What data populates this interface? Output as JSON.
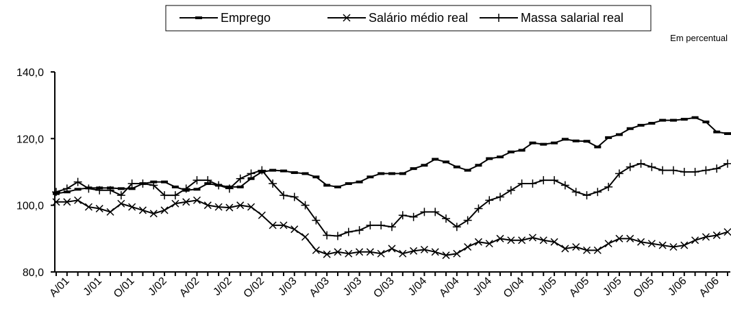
{
  "chart_data": {
    "type": "line",
    "annotation": "Em   percentual",
    "categories": [
      null,
      "A/01",
      null,
      null,
      "J/01",
      null,
      null,
      "O/01",
      null,
      null,
      "J/02",
      null,
      null,
      "A/02",
      null,
      null,
      "J/02",
      null,
      null,
      "O/02",
      null,
      null,
      "J/03",
      null,
      null,
      "A/03",
      null,
      null,
      "J/03",
      null,
      null,
      "O/03",
      null,
      null,
      "J/04",
      null,
      null,
      "A/04",
      null,
      null,
      "J/04",
      null,
      null,
      "O/04",
      null,
      null,
      "J/05",
      null,
      null,
      "A/05",
      null,
      null,
      "J/05",
      null,
      null,
      "O/05",
      null,
      null,
      "J/06",
      null,
      null,
      "A/06",
      null
    ],
    "series": [
      {
        "name": "Emprego",
        "color": "#000000",
        "marker": "dash",
        "values": [
          103.5,
          104,
          104.8,
          105.2,
          105.2,
          105.2,
          105,
          105,
          106.5,
          107,
          107,
          105.5,
          104.5,
          104.8,
          106.5,
          106,
          105.5,
          105.5,
          108,
          110,
          110.5,
          110.3,
          109.8,
          109.5,
          108.5,
          106,
          105.5,
          106.5,
          107,
          108.5,
          109.5,
          109.5,
          109.5,
          111,
          112,
          113.8,
          113,
          111.5,
          110.5,
          112,
          114,
          114.5,
          116,
          116.5,
          118.7,
          118.3,
          118.7,
          119.8,
          119.3,
          119.2,
          117.5,
          120.3,
          121.2,
          123,
          124,
          124.6,
          125.5,
          125.5,
          125.8,
          126.3,
          125,
          122,
          121.5
        ]
      },
      {
        "name": "Salário médio real",
        "color": "#000000",
        "marker": "x",
        "values": [
          101,
          101,
          101.5,
          99.5,
          99,
          98,
          100.5,
          99.5,
          98.5,
          97.5,
          98.5,
          100.5,
          101,
          101.5,
          100,
          99.5,
          99.3,
          100,
          99.5,
          97,
          94,
          94,
          92.8,
          90.5,
          86.5,
          85.3,
          86,
          85.5,
          86,
          86,
          85.5,
          87,
          85.5,
          86.3,
          86.7,
          86,
          85,
          85.5,
          87.5,
          89,
          88.5,
          90,
          89.5,
          89.5,
          90.3,
          89.5,
          89,
          87,
          87.5,
          86.5,
          86.5,
          88.5,
          90,
          90,
          89,
          88.5,
          88,
          87.5,
          88,
          89.5,
          90.5,
          91,
          92
        ]
      },
      {
        "name": "Massa salarial real",
        "color": "#000000",
        "marker": "plus",
        "values": [
          104,
          105,
          107,
          105,
          104.5,
          104.5,
          103,
          106.5,
          106.5,
          106,
          103,
          103,
          105,
          107.5,
          107.5,
          106,
          105,
          108,
          109.5,
          110.5,
          106.5,
          103,
          102.5,
          100,
          95.5,
          91,
          90.8,
          92,
          92.5,
          94,
          94,
          93.5,
          97,
          96.5,
          98,
          98,
          96,
          93.5,
          95.5,
          99,
          101.5,
          102.5,
          104.5,
          106.5,
          106.5,
          107.5,
          107.5,
          106,
          104,
          103,
          104,
          105.5,
          109.5,
          111.5,
          112.5,
          111.5,
          110.5,
          110.5,
          110,
          110,
          110.5,
          111,
          112.5
        ]
      }
    ],
    "ylim": [
      80,
      140
    ],
    "yticks": [
      {
        "value": 80,
        "label": "80,0"
      },
      {
        "value": 100,
        "label": "100,0"
      },
      {
        "value": 120,
        "label": "120,0"
      },
      {
        "value": 140,
        "label": "140,0"
      }
    ],
    "legend": "top"
  }
}
